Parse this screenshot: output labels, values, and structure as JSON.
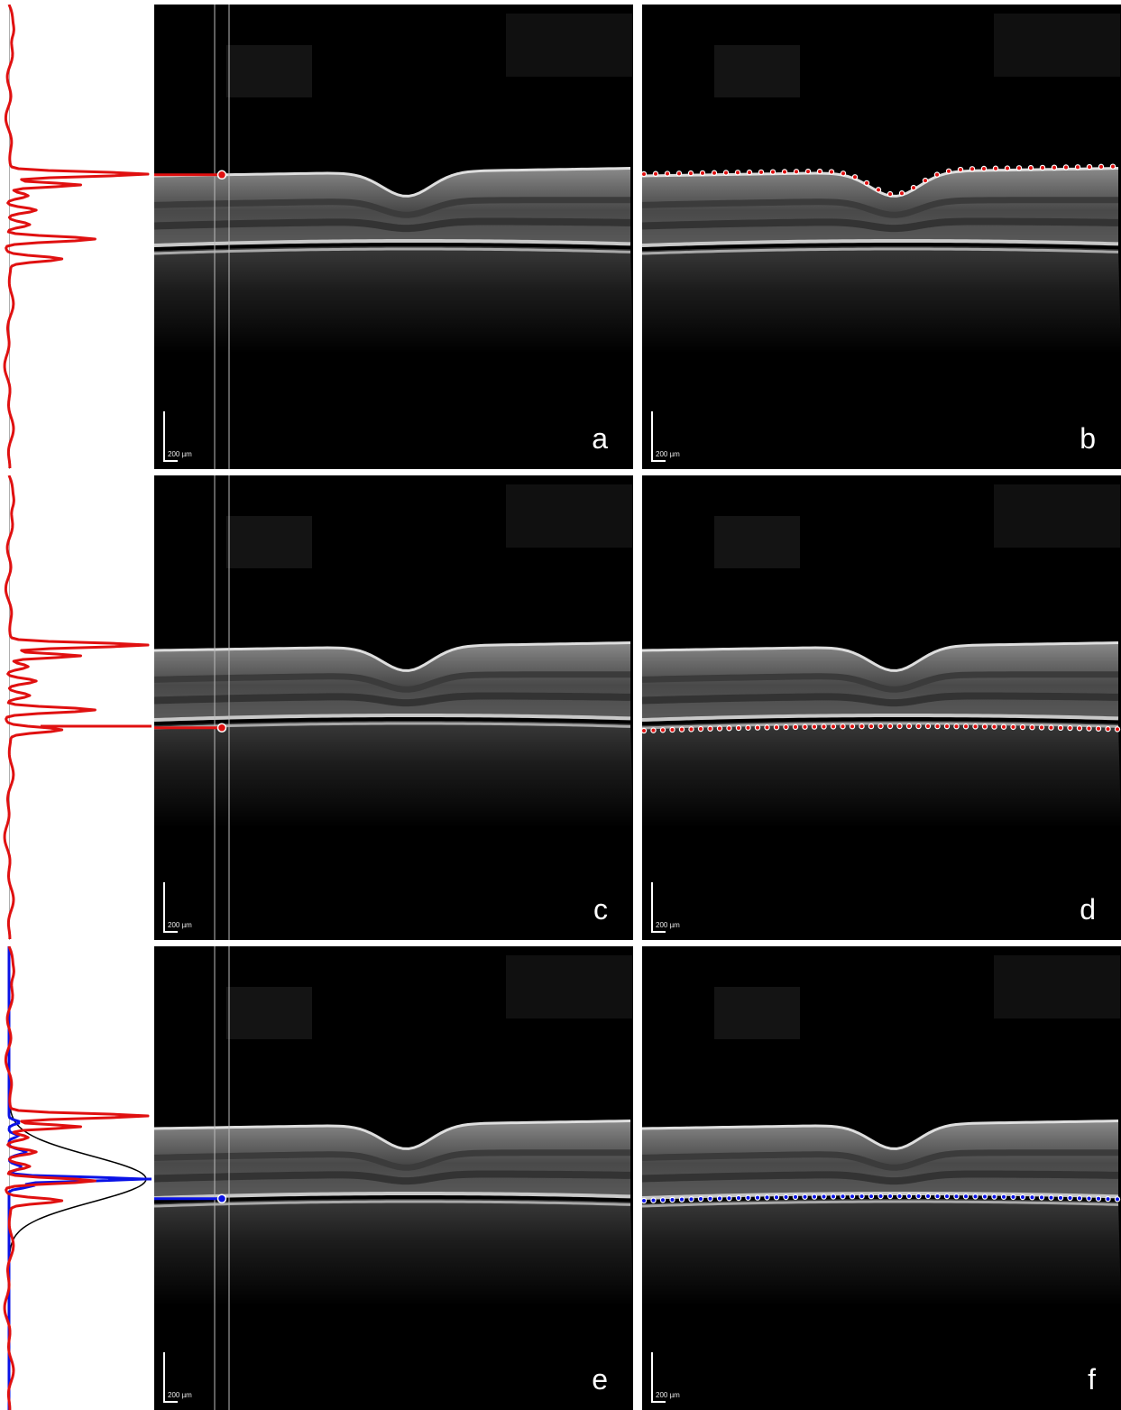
{
  "colors": {
    "profile_red": "#e01010",
    "profile_blue": "#0a12e6",
    "fit_black": "#000000",
    "ilm_dots": "#e01010",
    "rpe_dots": "#e01010",
    "bm_dots": "#0a12e6",
    "background": "#ffffff",
    "scan_background": "#000000"
  },
  "rows": [
    {
      "id": "row1",
      "left_panel": {
        "letter": "a",
        "scale_label": "200 µm",
        "marker": "red",
        "profile": "ilm"
      },
      "right_panel": {
        "letter": "b",
        "scale_label": "200 µm",
        "boundary": "ilm",
        "dot_color": "red"
      }
    },
    {
      "id": "row2",
      "left_panel": {
        "letter": "c",
        "scale_label": "200 µm",
        "marker": "red",
        "profile": "rpe"
      },
      "right_panel": {
        "letter": "d",
        "scale_label": "200 µm",
        "boundary": "rpe",
        "dot_color": "red"
      }
    },
    {
      "id": "row3",
      "left_panel": {
        "letter": "e",
        "scale_label": "200 µm",
        "marker": "blue",
        "profile": "bm_fit"
      },
      "right_panel": {
        "letter": "f",
        "scale_label": "200 µm",
        "boundary": "bm",
        "dot_color": "blue"
      }
    }
  ]
}
